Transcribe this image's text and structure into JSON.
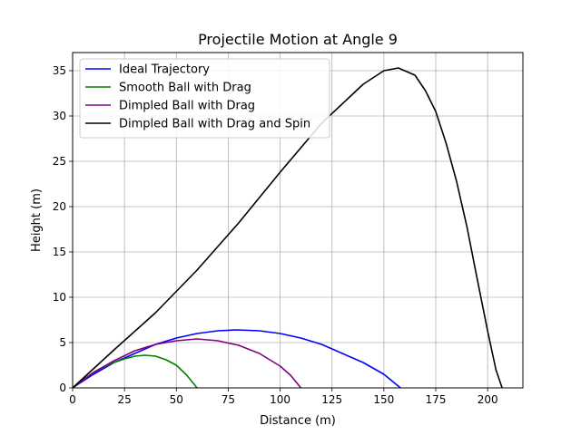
{
  "chart_data": {
    "type": "line",
    "title": "Projectile Motion at Angle 9",
    "xlabel": "Distance (m)",
    "ylabel": "Height (m)",
    "xlim": [
      0,
      217
    ],
    "ylim": [
      0,
      37
    ],
    "xticks": [
      0,
      25,
      50,
      75,
      100,
      125,
      150,
      175,
      200
    ],
    "yticks": [
      0,
      5,
      10,
      15,
      20,
      25,
      30,
      35
    ],
    "grid": true,
    "legend_position": "upper-left",
    "series": [
      {
        "name": "Ideal Trajectory",
        "color": "#0000ff",
        "points": [
          [
            0,
            0
          ],
          [
            10,
            1.5
          ],
          [
            20,
            2.8
          ],
          [
            30,
            3.8
          ],
          [
            40,
            4.8
          ],
          [
            50,
            5.5
          ],
          [
            60,
            6.0
          ],
          [
            70,
            6.3
          ],
          [
            79,
            6.4
          ],
          [
            90,
            6.3
          ],
          [
            100,
            6.0
          ],
          [
            110,
            5.5
          ],
          [
            120,
            4.8
          ],
          [
            130,
            3.8
          ],
          [
            140,
            2.8
          ],
          [
            150,
            1.5
          ],
          [
            158,
            0
          ]
        ]
      },
      {
        "name": "Smooth Ball with Drag",
        "color": "#008000",
        "points": [
          [
            0,
            0
          ],
          [
            5,
            0.9
          ],
          [
            10,
            1.7
          ],
          [
            15,
            2.3
          ],
          [
            20,
            2.8
          ],
          [
            25,
            3.2
          ],
          [
            30,
            3.5
          ],
          [
            35,
            3.6
          ],
          [
            40,
            3.5
          ],
          [
            45,
            3.1
          ],
          [
            50,
            2.5
          ],
          [
            55,
            1.4
          ],
          [
            60,
            0
          ]
        ]
      },
      {
        "name": "Dimpled Ball with Drag",
        "color": "#800080",
        "points": [
          [
            0,
            0
          ],
          [
            10,
            1.7
          ],
          [
            20,
            3.0
          ],
          [
            30,
            4.1
          ],
          [
            40,
            4.8
          ],
          [
            50,
            5.2
          ],
          [
            60,
            5.4
          ],
          [
            70,
            5.2
          ],
          [
            80,
            4.7
          ],
          [
            90,
            3.8
          ],
          [
            100,
            2.4
          ],
          [
            105,
            1.4
          ],
          [
            110,
            0
          ]
        ]
      },
      {
        "name": "Dimpled Ball with Drag and Spin",
        "color": "#000000",
        "points": [
          [
            0,
            0
          ],
          [
            20,
            4.2
          ],
          [
            40,
            8.3
          ],
          [
            60,
            13.0
          ],
          [
            80,
            18.2
          ],
          [
            100,
            23.8
          ],
          [
            120,
            29.2
          ],
          [
            140,
            33.5
          ],
          [
            150,
            35.0
          ],
          [
            157,
            35.3
          ],
          [
            165,
            34.5
          ],
          [
            170,
            32.8
          ],
          [
            175,
            30.5
          ],
          [
            180,
            27.0
          ],
          [
            185,
            22.8
          ],
          [
            190,
            17.8
          ],
          [
            195,
            12.0
          ],
          [
            200,
            6.3
          ],
          [
            204,
            2.0
          ],
          [
            207,
            0
          ]
        ]
      }
    ]
  }
}
